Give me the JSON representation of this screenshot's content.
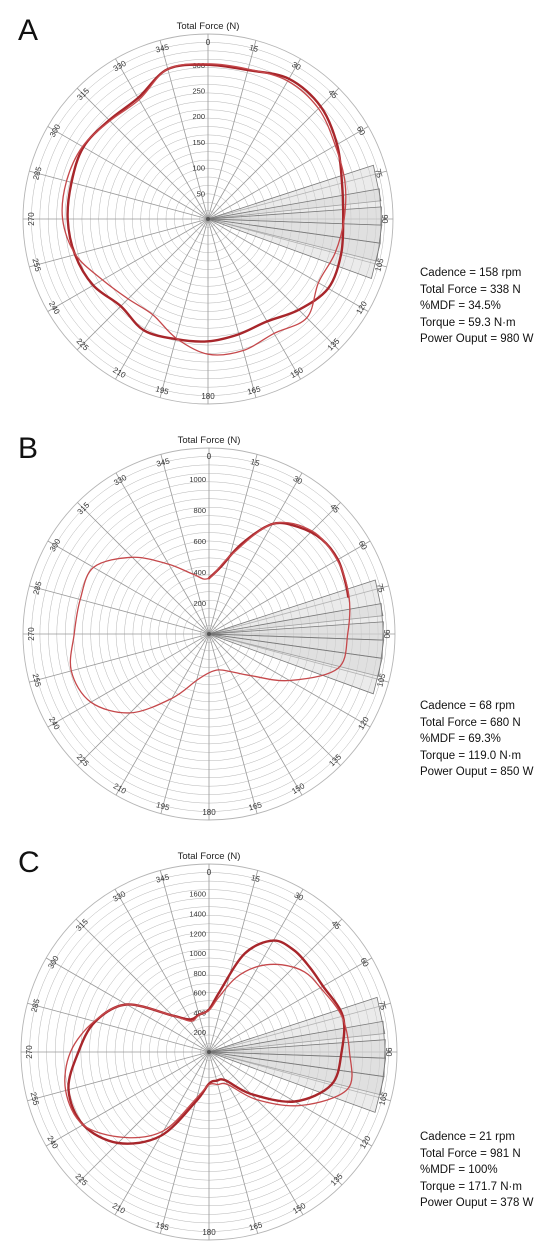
{
  "chart_data": [
    {
      "type": "polar",
      "panel": "A",
      "title": "Total Force (N)",
      "angle_labels": [
        "0",
        "15",
        "30",
        "45",
        "60",
        "75",
        "90",
        "105",
        "120",
        "135",
        "150",
        "165",
        "180",
        "195",
        "210",
        "225",
        "240",
        "255",
        "270",
        "285",
        "300",
        "315",
        "330",
        "345"
      ],
      "radial_ticks": [
        "50",
        "100",
        "150",
        "200",
        "250",
        "300"
      ],
      "rmax": 360,
      "series": [
        {
          "color": "#a8262b",
          "stroke_weight": "thick",
          "points": [
            [
              0,
              300
            ],
            [
              15,
              300
            ],
            [
              30,
              315
            ],
            [
              45,
              310
            ],
            [
              60,
              290
            ],
            [
              75,
              270
            ],
            [
              90,
              263
            ],
            [
              105,
              268
            ],
            [
              120,
              270
            ],
            [
              135,
              250
            ],
            [
              150,
              230
            ],
            [
              165,
              232
            ],
            [
              180,
              238
            ],
            [
              195,
              242
            ],
            [
              210,
              250
            ],
            [
              225,
              240
            ],
            [
              240,
              258
            ],
            [
              255,
              268
            ],
            [
              270,
              273
            ],
            [
              285,
              275
            ],
            [
              300,
              280
            ],
            [
              315,
              272
            ],
            [
              330,
              272
            ],
            [
              345,
              302
            ]
          ]
        },
        {
          "color": "#c5484b",
          "stroke_weight": "thin",
          "points": [
            [
              0,
              302
            ],
            [
              15,
              302
            ],
            [
              30,
              310
            ],
            [
              45,
              304
            ],
            [
              60,
              286
            ],
            [
              75,
              276
            ],
            [
              90,
              265
            ],
            [
              105,
              256
            ],
            [
              120,
              248
            ],
            [
              135,
              272
            ],
            [
              150,
              257
            ],
            [
              165,
              265
            ],
            [
              180,
              263
            ],
            [
              195,
              240
            ],
            [
              210,
              215
            ],
            [
              225,
              220
            ],
            [
              240,
              237
            ],
            [
              255,
              267
            ],
            [
              270,
              283
            ],
            [
              285,
              285
            ],
            [
              300,
              282
            ],
            [
              315,
              270
            ],
            [
              330,
              268
            ],
            [
              345,
              302
            ]
          ]
        }
      ],
      "highlight_sectors": [
        [
          72,
          84
        ],
        [
          80,
          92
        ],
        [
          86,
          98
        ],
        [
          92,
          104
        ],
        [
          98,
          110
        ]
      ],
      "stats": [
        "Cadence = 158 rpm",
        "Total Force = 338 N",
        "%MDF = 34.5%",
        "Torque = 59.3 N·m",
        "Power Ouput  = 980 W"
      ]
    },
    {
      "type": "polar",
      "panel": "B",
      "title": "Total Force (N)",
      "angle_labels": [
        "0",
        "15",
        "30",
        "45",
        "60",
        "75",
        "90",
        "105",
        "120",
        "135",
        "150",
        "165",
        "180",
        "195",
        "210",
        "225",
        "240",
        "255",
        "270",
        "285",
        "300",
        "315",
        "330",
        "345"
      ],
      "radial_ticks": [
        "200",
        "400",
        "600",
        "800",
        "1000"
      ],
      "rmax": 1200,
      "series": [
        {
          "color": "#a8262b",
          "stroke_weight": "thick",
          "points": [
            [
              0,
              360
            ],
            [
              10,
              440
            ],
            [
              20,
              620
            ],
            [
              30,
              820
            ],
            [
              40,
              900
            ],
            [
              50,
              950
            ],
            [
              60,
              960
            ],
            [
              70,
              940
            ],
            [
              75,
              930
            ]
          ]
        },
        {
          "color": "#c5484b",
          "stroke_weight": "thin",
          "points": [
            [
              0,
              360
            ],
            [
              15,
              520
            ],
            [
              30,
              820
            ],
            [
              45,
              940
            ],
            [
              60,
              955
            ],
            [
              75,
              935
            ],
            [
              90,
              895
            ],
            [
              105,
              860
            ],
            [
              120,
              600
            ],
            [
              135,
              380
            ],
            [
              150,
              280
            ],
            [
              165,
              240
            ],
            [
              180,
              250
            ],
            [
              195,
              310
            ],
            [
              210,
              480
            ],
            [
              225,
              720
            ],
            [
              240,
              880
            ],
            [
              255,
              920
            ],
            [
              270,
              870
            ],
            [
              285,
              860
            ],
            [
              300,
              860
            ],
            [
              315,
              700
            ],
            [
              330,
              520
            ],
            [
              345,
              400
            ]
          ]
        }
      ],
      "highlight_sectors": [
        [
          72,
          84
        ],
        [
          80,
          92
        ],
        [
          86,
          98
        ],
        [
          92,
          104
        ],
        [
          98,
          110
        ]
      ],
      "stats": [
        "Cadence = 68 rpm",
        "Total Force = 680 N",
        "%MDF = 69.3%",
        "Torque = 119.0 N·m",
        "Power Ouput  = 850 W"
      ]
    },
    {
      "type": "polar",
      "panel": "C",
      "title": "Total Force (N)",
      "angle_labels": [
        "0",
        "15",
        "30",
        "45",
        "60",
        "75",
        "90",
        "105",
        "120",
        "135",
        "150",
        "165",
        "180",
        "195",
        "210",
        "225",
        "240",
        "255",
        "270",
        "285",
        "300",
        "315",
        "330",
        "345"
      ],
      "radial_ticks": [
        "200",
        "400",
        "600",
        "800",
        "1000",
        "1200",
        "1400",
        "1600"
      ],
      "rmax": 1900,
      "series": [
        {
          "color": "#a8262b",
          "stroke_weight": "thick",
          "points": [
            [
              0,
              430
            ],
            [
              10,
              620
            ],
            [
              20,
              1060
            ],
            [
              30,
              1300
            ],
            [
              40,
              1340
            ],
            [
              50,
              1330
            ],
            [
              60,
              1330
            ],
            [
              75,
              1400
            ],
            [
              90,
              1340
            ],
            [
              105,
              1280
            ],
            [
              120,
              1000
            ],
            [
              135,
              600
            ],
            [
              150,
              330
            ],
            [
              165,
              300
            ],
            [
              180,
              320
            ],
            [
              195,
              520
            ],
            [
              210,
              980
            ],
            [
              225,
              1300
            ],
            [
              240,
              1470
            ],
            [
              255,
              1470
            ],
            [
              270,
              1320
            ],
            [
              285,
              1190
            ],
            [
              300,
              960
            ],
            [
              315,
              520
            ],
            [
              330,
              380
            ],
            [
              345,
              390
            ]
          ]
        },
        {
          "color": "#c5484b",
          "stroke_weight": "thin",
          "points": [
            [
              0,
              420
            ],
            [
              10,
              560
            ],
            [
              20,
              800
            ],
            [
              30,
              1000
            ],
            [
              40,
              1150
            ],
            [
              50,
              1260
            ],
            [
              60,
              1300
            ],
            [
              75,
              1390
            ],
            [
              90,
              1420
            ],
            [
              105,
              1450
            ],
            [
              120,
              1080
            ],
            [
              135,
              680
            ],
            [
              150,
              380
            ],
            [
              165,
              340
            ],
            [
              180,
              330
            ],
            [
              195,
              480
            ],
            [
              210,
              920
            ],
            [
              225,
              1220
            ],
            [
              240,
              1470
            ],
            [
              255,
              1500
            ],
            [
              270,
              1400
            ],
            [
              285,
              1200
            ],
            [
              300,
              960
            ],
            [
              315,
              520
            ],
            [
              330,
              360
            ],
            [
              345,
              390
            ]
          ]
        }
      ],
      "highlight_sectors": [
        [
          72,
          84
        ],
        [
          80,
          92
        ],
        [
          86,
          98
        ],
        [
          92,
          104
        ],
        [
          98,
          110
        ]
      ],
      "stats": [
        "Cadence = 21 rpm",
        "Total Force = 981 N",
        "%MDF = 100%",
        "Torque = 171.7 N·m",
        "Power Ouput  = 378 W"
      ]
    }
  ],
  "panel_letters": [
    "A",
    "B",
    "C"
  ],
  "colors": {
    "grid": "#b5b5b5",
    "spoke": "#9a9a9a",
    "sector_fill": "#d2d2d2",
    "sector_stroke": "#777777"
  }
}
